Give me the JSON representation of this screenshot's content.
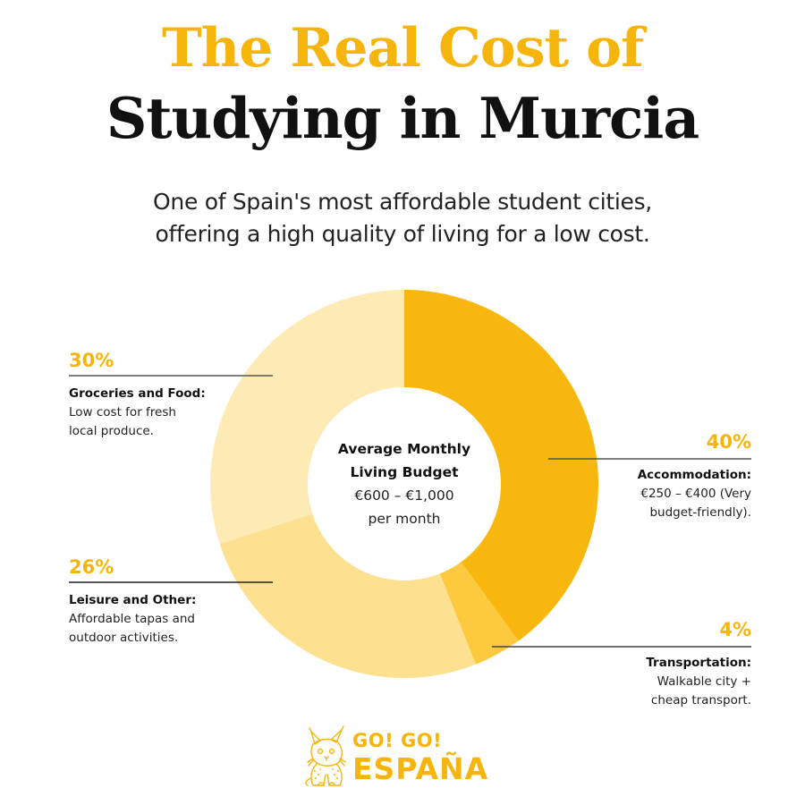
{
  "header": {
    "title_line1": "The Real Cost of",
    "title_line2": "Studying in Murcia",
    "subtitle_line1": "One of Spain's most affordable student cities,",
    "subtitle_line2": "offering a high quality of living for a low cost."
  },
  "center": {
    "line1": "Average Monthly",
    "line2": "Living Budget",
    "line3": "€600 – €1,000",
    "line4": "per month"
  },
  "labels": {
    "groceries": {
      "pct": "30%",
      "name": "Groceries and Food:",
      "desc1": "Low cost for fresh",
      "desc2": "local produce."
    },
    "leisure": {
      "pct": "26%",
      "name": "Leisure and Other:",
      "desc1": "Affordable tapas and",
      "desc2": "outdoor activities."
    },
    "accommodation": {
      "pct": "40%",
      "name": "Accommodation:",
      "desc1": "€250 – €400 (Very",
      "desc2": "budget-friendly)."
    },
    "transportation": {
      "pct": "4%",
      "name": "Transportation:",
      "desc1": "Walkable city +",
      "desc2": "cheap transport."
    }
  },
  "logo": {
    "line1": "GO! GO!",
    "line2": "ESPAÑA",
    "icon": "lynx-mascot-icon"
  },
  "colors": {
    "accent": "#F5B50C",
    "accommodation": "#F7B70E",
    "transportation": "#FDCA3F",
    "leisure": "#FDE090",
    "groceries": "#FEEAB4",
    "text": "#111111"
  },
  "chart_data": {
    "type": "pie",
    "subtype": "donut",
    "title": "The Real Cost of Studying in Murcia",
    "subtitle": "One of Spain's most affordable student cities, offering a high quality of living for a low cost.",
    "center_label": "Average Monthly Living Budget €600 – €1,000 per month",
    "categories": [
      "Accommodation",
      "Transportation",
      "Leisure and Other",
      "Groceries and Food"
    ],
    "values": [
      40,
      4,
      26,
      30
    ],
    "unit": "%",
    "colors": [
      "#F7B70E",
      "#FDCA3F",
      "#FDE090",
      "#FEEAB4"
    ],
    "start_angle_deg": 0,
    "direction": "clockwise",
    "annotations": [
      {
        "category": "Accommodation",
        "text": "€250 – €400 (Very budget-friendly)."
      },
      {
        "category": "Transportation",
        "text": "Walkable city + cheap transport."
      },
      {
        "category": "Leisure and Other",
        "text": "Affordable tapas and outdoor activities."
      },
      {
        "category": "Groceries and Food",
        "text": "Low cost for fresh local produce."
      }
    ],
    "legend": "none (direct callout labels)"
  }
}
